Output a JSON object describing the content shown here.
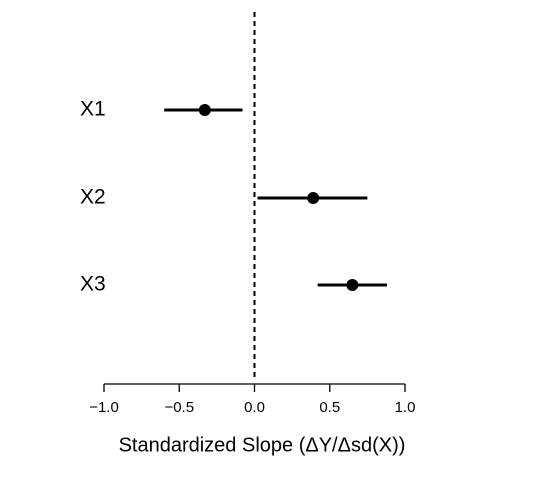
{
  "chart_data": {
    "type": "forest",
    "categories": [
      "X1",
      "X2",
      "X3"
    ],
    "values": [
      -0.33,
      0.39,
      0.65
    ],
    "lower": [
      -0.6,
      0.02,
      0.42
    ],
    "upper": [
      -0.08,
      0.75,
      0.88
    ],
    "color": "#000000",
    "xlim": [
      -1,
      1
    ],
    "xticks": [
      {
        "value": -1,
        "label": "−1.0"
      },
      {
        "value": -0.5,
        "label": "−0.5"
      },
      {
        "value": 0,
        "label": "0.0"
      },
      {
        "value": 0.5,
        "label": "0.5"
      },
      {
        "value": 1,
        "label": "1.0"
      }
    ],
    "xlabel": "Standardized Slope (ΔY/Δsd(X))",
    "reference_line": 0
  }
}
